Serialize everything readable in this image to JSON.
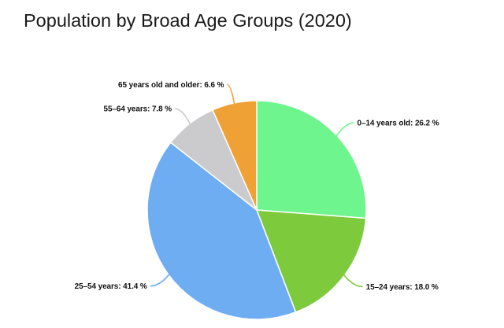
{
  "page": {
    "background_color": "#ffffff"
  },
  "chart_data": {
    "type": "pie",
    "title": "Population by Broad Age Groups (2020)",
    "title_color": "#1a1a1a",
    "label_color": "#111111",
    "start_angle_deg": 0,
    "direction": "clockwise",
    "label_position": "outside",
    "slice_border_color": "#ffffff",
    "slices": [
      {
        "label": "0–14 years old",
        "value": 26.2,
        "display": "0–14 years old: 26.2 %",
        "color": "#6ef58d"
      },
      {
        "label": "15–24 years",
        "value": 18.0,
        "display": "15–24 years: 18.0 %",
        "color": "#7dca3d"
      },
      {
        "label": "25–54 years",
        "value": 41.4,
        "display": "25–54 years: 41.4 %",
        "color": "#6fadf3"
      },
      {
        "label": "55–64 years",
        "value": 7.8,
        "display": "55–64 years: 7.8 %",
        "color": "#cbcbcd"
      },
      {
        "label": "65 years old and older",
        "value": 6.6,
        "display": "65 years old and older: 6.6 %",
        "color": "#f0a136"
      }
    ]
  }
}
